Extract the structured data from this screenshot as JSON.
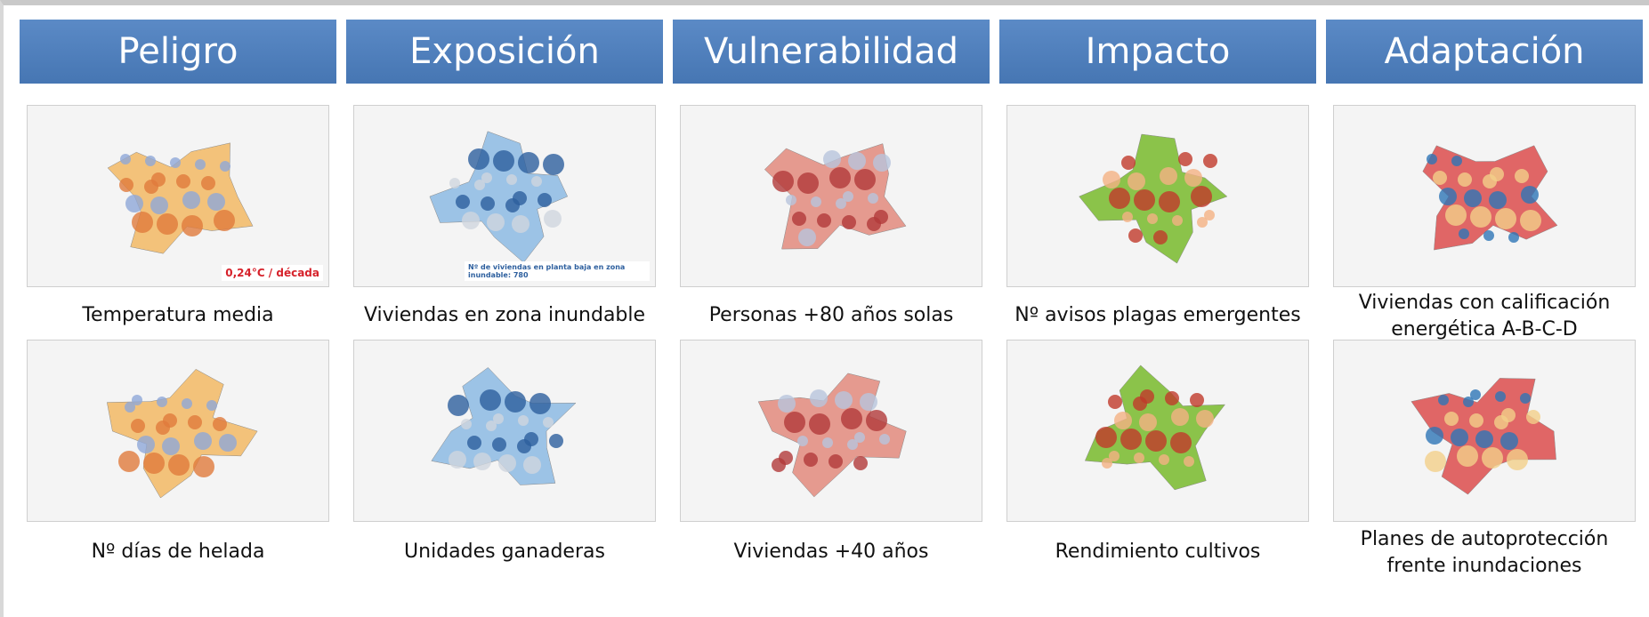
{
  "headers": [
    "Peligro",
    "Exposición",
    "Vulnerabilidad",
    "Impacto",
    "Adaptación"
  ],
  "columns": [
    {
      "items": [
        {
          "caption": [
            "Temperatura media"
          ],
          "annotation": "0,24°C / década"
        },
        {
          "caption": [
            "Nº días de helada"
          ]
        }
      ]
    },
    {
      "items": [
        {
          "caption": [
            "Viviendas en zona inundable"
          ],
          "annotation": "Nº de viviendas en planta baja en zona inundable: 780"
        },
        {
          "caption": [
            "Unidades ganaderas"
          ]
        }
      ]
    },
    {
      "items": [
        {
          "caption": [
            "Personas +80 años solas"
          ]
        },
        {
          "caption": [
            "Viviendas +40 años"
          ]
        }
      ]
    },
    {
      "items": [
        {
          "caption": [
            "Nº avisos plagas emergentes"
          ]
        },
        {
          "caption": [
            "Rendimiento cultivos"
          ]
        }
      ]
    },
    {
      "items": [
        {
          "caption": [
            "Viviendas con calificación",
            "energética A-B-C-D"
          ]
        },
        {
          "caption": [
            "Planes de autoprotección",
            "frente inundaciones"
          ]
        }
      ]
    }
  ]
}
